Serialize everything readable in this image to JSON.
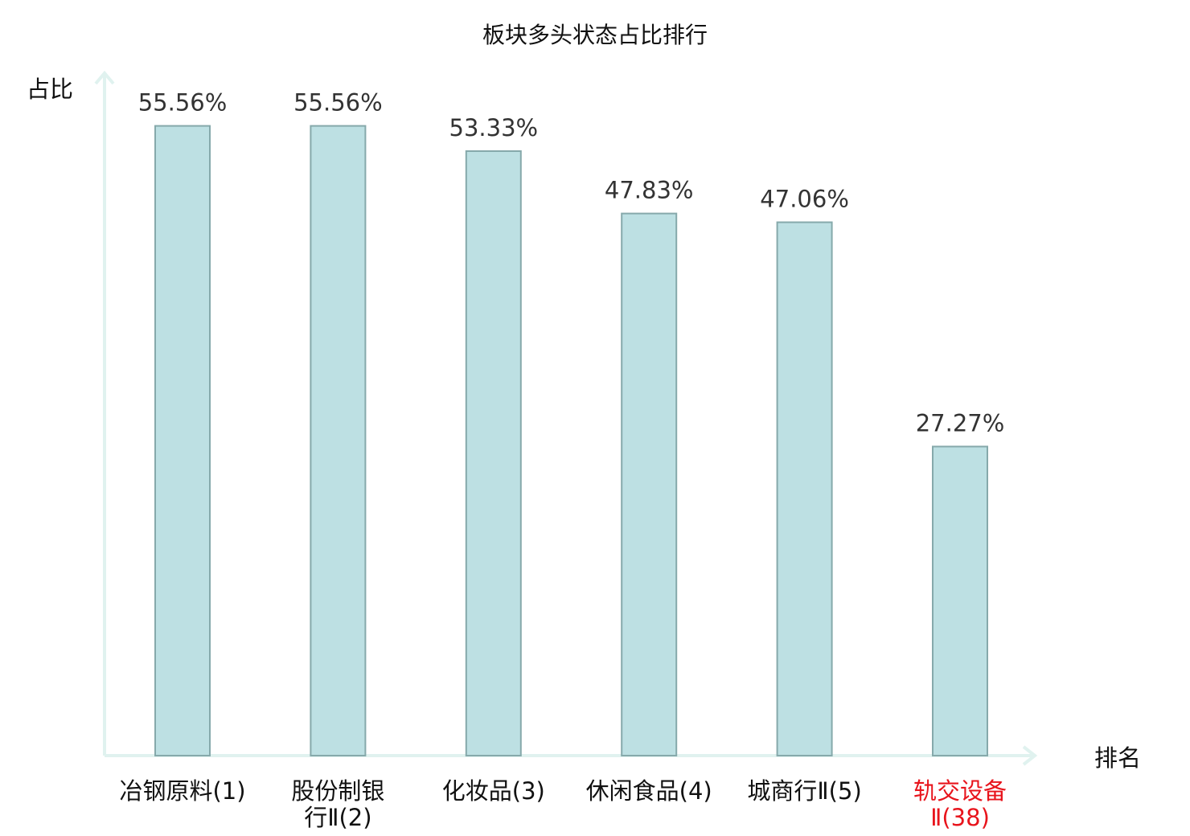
{
  "chart_data": {
    "type": "bar",
    "title": "板块多头状态占比排行",
    "xlabel": "排名",
    "ylabel": "占比",
    "categories": [
      [
        "冶钢原料(1)"
      ],
      [
        "股份制银",
        "行Ⅱ(2)"
      ],
      [
        "化妆品(3)"
      ],
      [
        "休闲食品(4)"
      ],
      [
        "城商行Ⅱ(5)"
      ],
      [
        "轨交设备",
        "Ⅱ(38)"
      ]
    ],
    "values": [
      55.56,
      55.56,
      53.33,
      47.83,
      47.06,
      27.27
    ],
    "value_labels": [
      "55.56%",
      "55.56%",
      "53.33%",
      "47.83%",
      "47.06%",
      "27.27%"
    ],
    "highlighted_index": 5,
    "ylim": [
      0,
      60
    ],
    "grid": false,
    "colors": {
      "bar_fill": "#bde0e3",
      "bar_stroke": "#86a9ab",
      "axis": "#e0f2ef",
      "highlight_text": "#e8141c",
      "text": "#111111",
      "value_text": "#333333"
    }
  }
}
